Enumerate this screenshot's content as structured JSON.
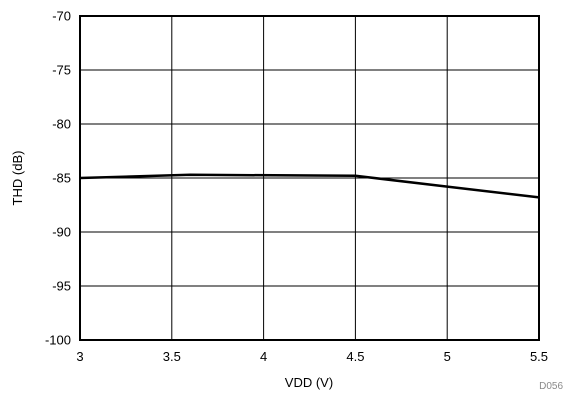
{
  "chart_data": {
    "type": "line",
    "xlabel": "VDD (V)",
    "ylabel": "THD (dB)",
    "xlim": [
      3,
      5.5
    ],
    "ylim": [
      -100,
      -70
    ],
    "x_ticks": [
      3,
      3.5,
      4,
      4.5,
      5,
      5.5
    ],
    "x_tick_labels": [
      "3",
      "3.5",
      "4",
      "4.5",
      "5",
      "5.5"
    ],
    "y_ticks": [
      -100,
      -95,
      -90,
      -85,
      -80,
      -75,
      -70
    ],
    "y_tick_labels": [
      "-100",
      "-95",
      "-90",
      "-85",
      "-80",
      "-75",
      "-70"
    ],
    "grid": true,
    "series": [
      {
        "x": [
          3.0,
          3.6,
          4.5,
          5.0,
          5.5
        ],
        "y": [
          -85.0,
          -84.7,
          -84.8,
          -85.8,
          -86.8
        ],
        "color": "#000000"
      }
    ],
    "figure_id": "D056"
  }
}
